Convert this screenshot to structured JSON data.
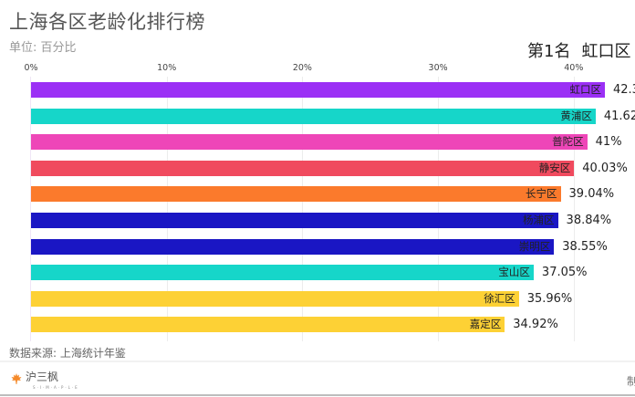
{
  "header": {
    "title": "上海各区老龄化排行榜",
    "subtitle": "单位: 百分比",
    "rank_prefix": "第1名",
    "rank_name": "虹口区"
  },
  "footer": {
    "source": "数据来源: 上海统计年鉴",
    "logo_text": "沪三枫",
    "logo_sub": "S·I·M·A·P·L·E",
    "right_text": "制"
  },
  "chart_data": {
    "type": "bar",
    "orientation": "horizontal",
    "title": "上海各区老龄化排行榜",
    "subtitle": "单位: 百分比",
    "xlabel": "",
    "ylabel": "",
    "xlim": [
      0,
      45
    ],
    "x_ticks": [
      "0%",
      "10%",
      "20%",
      "30%",
      "40%"
    ],
    "grid": true,
    "legend": "none",
    "categories": [
      "虹口区",
      "黄浦区",
      "普陀区",
      "静安区",
      "长宁区",
      "杨浦区",
      "崇明区",
      "宝山区",
      "徐汇区",
      "嘉定区"
    ],
    "values": [
      42.3,
      41.62,
      41,
      40.03,
      39.04,
      38.84,
      38.55,
      37.05,
      35.96,
      34.92
    ],
    "value_labels": [
      "42.3",
      "41.62",
      "41%",
      "40.03%",
      "39.04%",
      "38.84%",
      "38.55%",
      "37.05%",
      "35.96%",
      "34.92%"
    ],
    "colors": [
      "#9b30f5",
      "#16d6c9",
      "#ee46b8",
      "#f04a5e",
      "#fb7a2c",
      "#1a16c4",
      "#1a16c4",
      "#16d6c9",
      "#fdd135",
      "#fdd135"
    ],
    "source": "数据来源: 上海统计年鉴"
  }
}
